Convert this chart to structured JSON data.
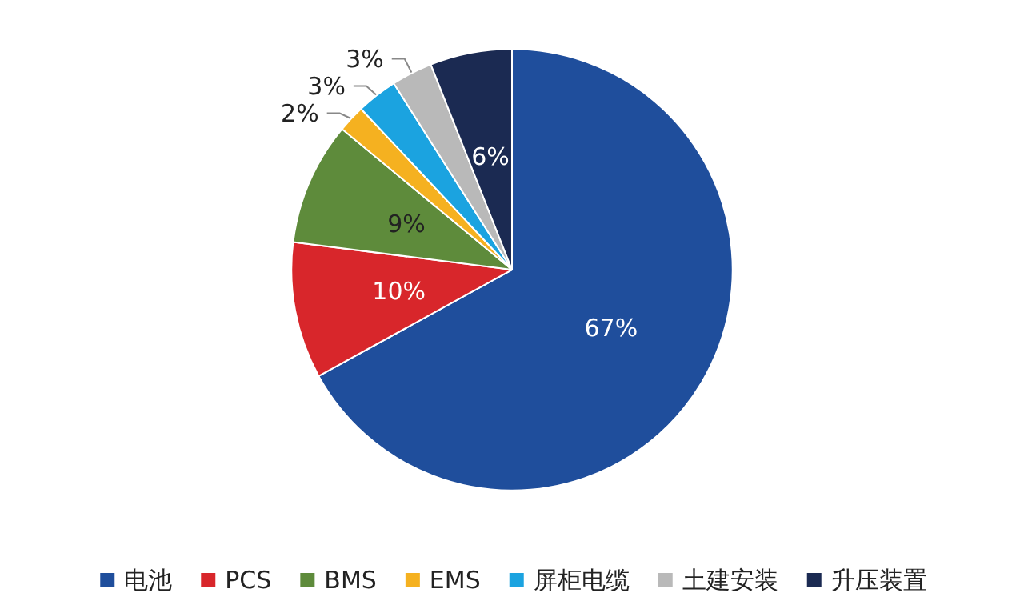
{
  "chart_data": {
    "type": "pie",
    "categories": [
      "电池",
      "PCS",
      "BMS",
      "EMS",
      "屏柜电缆",
      "土建安装",
      "升压装置"
    ],
    "values": [
      67,
      10,
      9,
      2,
      3,
      3,
      6
    ],
    "value_labels": [
      "67%",
      "10%",
      "9%",
      "2%",
      "3%",
      "3%",
      "6%"
    ],
    "colors": [
      "#1f4e9c",
      "#d8262b",
      "#5e8b3b",
      "#f5b120",
      "#1ba3e0",
      "#b9b9b9",
      "#1b2a52"
    ],
    "legend": "bottom"
  }
}
